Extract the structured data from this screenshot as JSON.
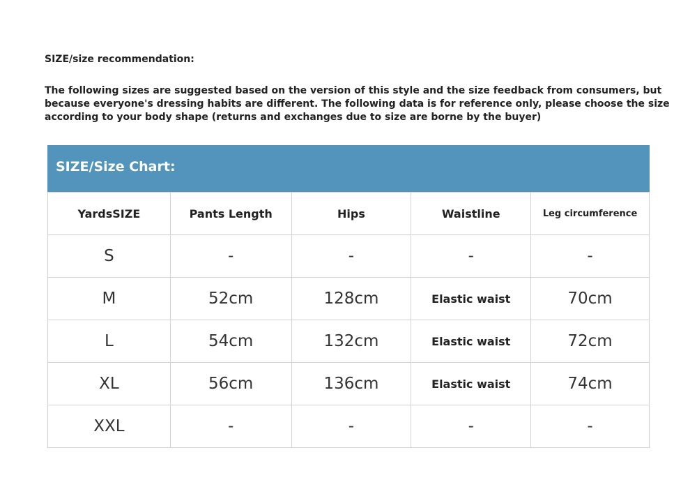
{
  "title": "SIZE/size recommendation:",
  "intro": "The following sizes are suggested based on the version of this style and the size feedback from consumers, but because everyone's dressing habits are different. The following data is for reference only, please choose the size according to your body shape (returns and exchanges due to size are borne by the buyer)",
  "chart_title": "SIZE/Size Chart:",
  "colors": {
    "banner": "#5294bb"
  },
  "table": {
    "headers": [
      "YardsSIZE",
      "Pants Length",
      "Hips",
      "Waistline",
      "Leg circumference"
    ],
    "rows": [
      [
        "S",
        "-",
        "-",
        "-",
        "-"
      ],
      [
        "M",
        "52cm",
        "128cm",
        "Elastic waist",
        "70cm"
      ],
      [
        "L",
        "54cm",
        "132cm",
        "Elastic waist",
        "72cm"
      ],
      [
        "XL",
        "56cm",
        "136cm",
        "Elastic waist",
        "74cm"
      ],
      [
        "XXL",
        "-",
        "-",
        "-",
        "-"
      ]
    ]
  }
}
